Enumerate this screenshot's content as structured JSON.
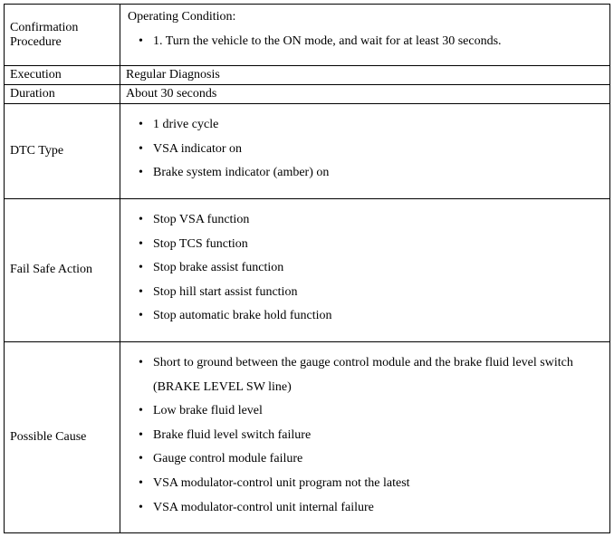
{
  "rows": [
    {
      "label": "Confirmation Procedure",
      "header": "Operating Condition:",
      "items": [
        "1. Turn the vehicle to the ON mode, and wait for at least 30 seconds."
      ],
      "type": "header-list"
    },
    {
      "label": "Execution",
      "value": "Regular Diagnosis",
      "type": "plain"
    },
    {
      "label": "Duration",
      "value": "About 30 seconds",
      "type": "plain"
    },
    {
      "label": "DTC Type",
      "items": [
        "1 drive cycle",
        "VSA indicator on",
        "Brake system indicator (amber) on"
      ],
      "type": "list"
    },
    {
      "label": "Fail Safe Action",
      "items": [
        "Stop VSA function",
        "Stop TCS function",
        "Stop brake assist function",
        "Stop hill start assist function",
        "Stop automatic brake hold function"
      ],
      "type": "list"
    },
    {
      "label": "Possible Cause",
      "items": [
        "Short to ground between the gauge control module and the brake fluid level switch (BRAKE LEVEL SW line)",
        "Low brake fluid level",
        "Brake fluid level switch failure",
        "Gauge control module failure",
        "VSA modulator-control unit program not the latest",
        "VSA modulator-control unit internal failure"
      ],
      "type": "list"
    }
  ]
}
